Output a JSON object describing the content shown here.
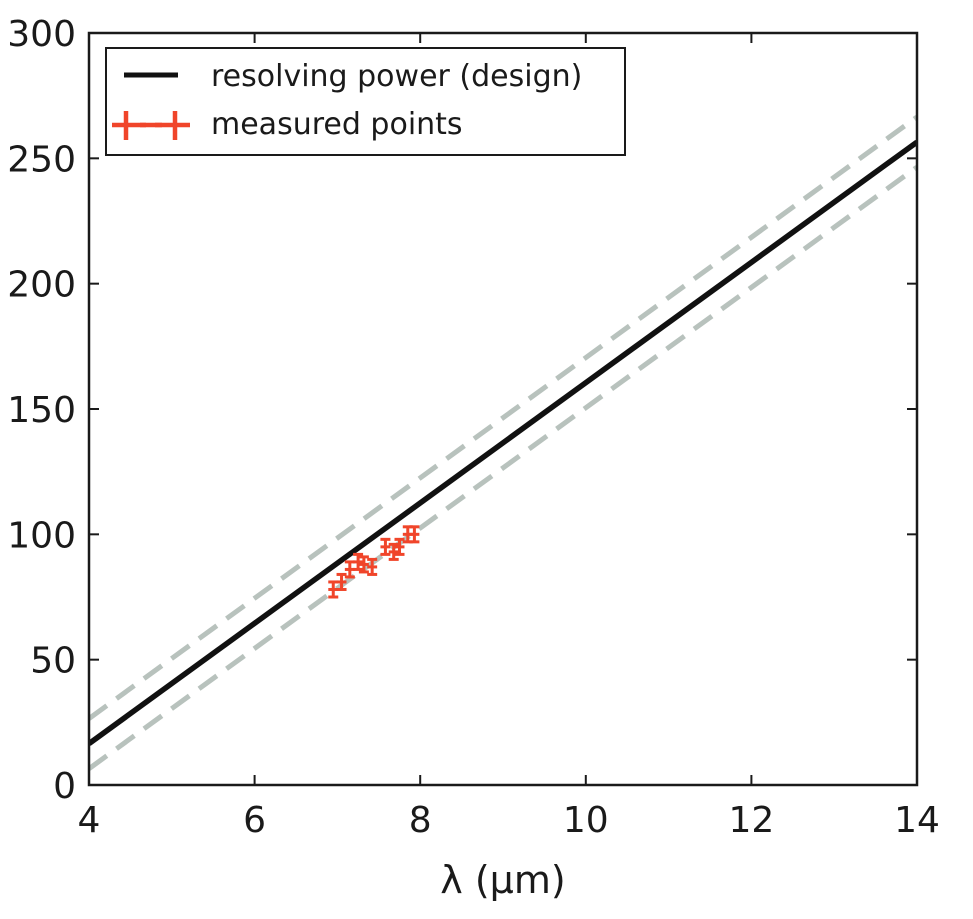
{
  "chart_data": {
    "type": "line",
    "title": "",
    "xlabel": "λ (μm)",
    "ylabel": "",
    "xlim": [
      4,
      14
    ],
    "ylim": [
      0,
      300
    ],
    "xticks": [
      4,
      6,
      8,
      10,
      12,
      14
    ],
    "yticks": [
      0,
      50,
      100,
      150,
      200,
      250,
      300
    ],
    "grid": false,
    "legend_position": "top-left",
    "series": [
      {
        "name": "resolving power (design)",
        "kind": "line",
        "style": "solid",
        "color": "#111111",
        "x": [
          4,
          14
        ],
        "y": [
          16.5,
          256.5
        ],
        "in_legend": true
      },
      {
        "name": "upper bound",
        "kind": "line",
        "style": "dashed",
        "color": "#b8c2bd",
        "x": [
          4,
          14
        ],
        "y": [
          26.5,
          266.5
        ],
        "in_legend": false
      },
      {
        "name": "lower bound",
        "kind": "line",
        "style": "dashed",
        "color": "#b8c2bd",
        "x": [
          4,
          14
        ],
        "y": [
          6.5,
          246.5
        ],
        "in_legend": false
      },
      {
        "name": "measured points",
        "kind": "errorbar",
        "color": "#f0452a",
        "points": [
          {
            "x": 6.95,
            "y": 78,
            "xerr": 0.06,
            "yerr": 3
          },
          {
            "x": 7.05,
            "y": 81,
            "xerr": 0.06,
            "yerr": 3
          },
          {
            "x": 7.15,
            "y": 86,
            "xerr": 0.06,
            "yerr": 3
          },
          {
            "x": 7.25,
            "y": 89,
            "xerr": 0.06,
            "yerr": 3
          },
          {
            "x": 7.32,
            "y": 88,
            "xerr": 0.06,
            "yerr": 3
          },
          {
            "x": 7.42,
            "y": 87,
            "xerr": 0.06,
            "yerr": 3
          },
          {
            "x": 7.58,
            "y": 95,
            "xerr": 0.06,
            "yerr": 3
          },
          {
            "x": 7.68,
            "y": 93,
            "xerr": 0.06,
            "yerr": 3
          },
          {
            "x": 7.75,
            "y": 95,
            "xerr": 0.06,
            "yerr": 3
          },
          {
            "x": 7.85,
            "y": 100,
            "xerr": 0.06,
            "yerr": 3
          },
          {
            "x": 7.93,
            "y": 100,
            "xerr": 0.06,
            "yerr": 3
          }
        ],
        "in_legend": true
      }
    ]
  },
  "legend": {
    "design_label": "resolving power (design)",
    "measured_label": "measured points"
  }
}
